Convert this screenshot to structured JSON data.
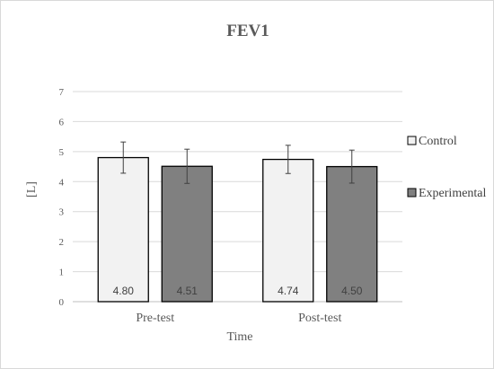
{
  "chart_data": {
    "type": "bar",
    "title": "FEV1",
    "xlabel": "Time",
    "ylabel": "[L]",
    "categories": [
      "Pre-test",
      "Post-test"
    ],
    "ylim": [
      0,
      7
    ],
    "yticks": [
      0,
      1,
      2,
      3,
      4,
      5,
      6,
      7
    ],
    "grid": true,
    "legend_position": "right",
    "series": [
      {
        "name": "Control",
        "values": [
          4.8,
          4.74
        ],
        "labels": [
          "4.80",
          "4.74"
        ],
        "error": [
          0.52,
          0.47
        ],
        "color": "#f2f2f2",
        "label_color": "#404040"
      },
      {
        "name": "Experimental",
        "values": [
          4.51,
          4.5
        ],
        "labels": [
          "4.51",
          "4.50"
        ],
        "error": [
          0.57,
          0.55
        ],
        "color": "#808080",
        "label_color": "#404040"
      }
    ]
  }
}
